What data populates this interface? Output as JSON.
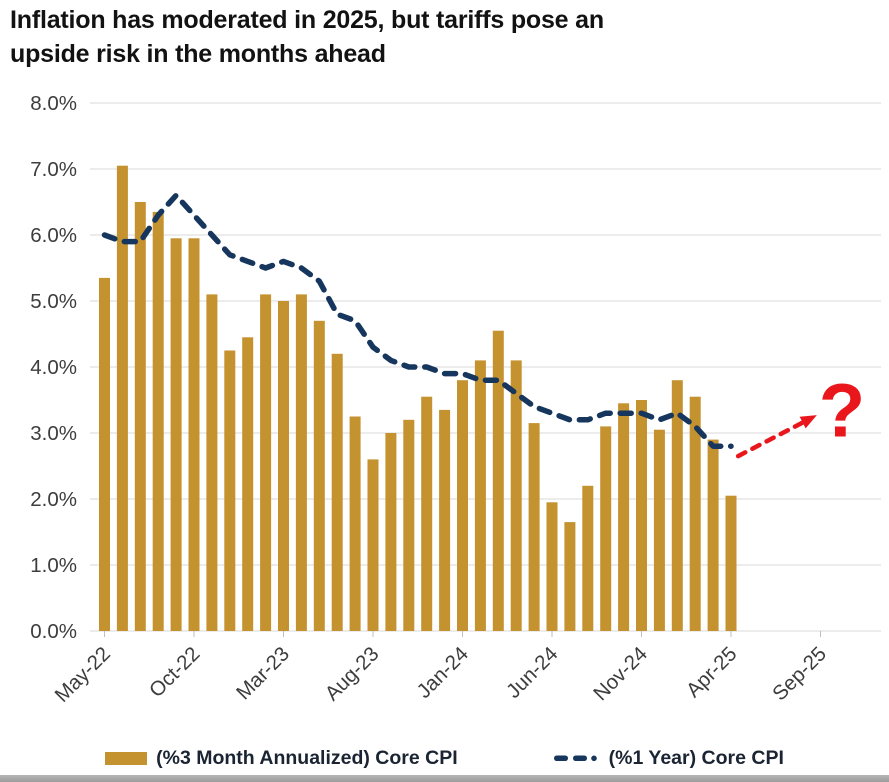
{
  "title": {
    "line1": "Inflation has moderated in 2025, but tariffs pose an",
    "line2": "upside risk in the months ahead"
  },
  "colors": {
    "bar_gold": "#C4922F",
    "line_navy": "#16365D",
    "annotation_red": "#E9161C",
    "gridline": "#D9D9D9",
    "tick": "#BFBFBF",
    "axis_text": "#3D3D3D",
    "title_text": "#121212",
    "legend_text": "#1B2433",
    "footer_strip": "#A6A6A6"
  },
  "chart_data": {
    "type": "bar",
    "title": "Inflation has moderated in 2025, but tariffs pose an upside risk in the months ahead",
    "xlabel": "",
    "ylabel": "",
    "ylim": [
      0,
      8
    ],
    "grid": "horizontal",
    "legend_position": "bottom",
    "categories": [
      "May-22",
      "Jun-22",
      "Jul-22",
      "Aug-22",
      "Sep-22",
      "Oct-22",
      "Nov-22",
      "Dec-22",
      "Jan-23",
      "Feb-23",
      "Mar-23",
      "Apr-23",
      "May-23",
      "Jun-23",
      "Jul-23",
      "Aug-23",
      "Sep-23",
      "Oct-23",
      "Nov-23",
      "Dec-23",
      "Jan-24",
      "Feb-24",
      "Mar-24",
      "Apr-24",
      "May-24",
      "Jun-24",
      "Jul-24",
      "Aug-24",
      "Sep-24",
      "Oct-24",
      "Nov-24",
      "Dec-24",
      "Jan-25",
      "Feb-25",
      "Mar-25",
      "Apr-25"
    ],
    "series": [
      {
        "name": "(%3 Month Annualized) Core CPI",
        "kind": "bar",
        "color": "#C4922F",
        "values": [
          5.35,
          7.05,
          6.5,
          6.35,
          5.95,
          5.95,
          5.1,
          4.25,
          4.45,
          5.1,
          5.0,
          5.1,
          4.7,
          4.2,
          3.25,
          2.6,
          3.0,
          3.2,
          3.55,
          3.35,
          3.8,
          4.1,
          4.55,
          4.1,
          3.15,
          1.95,
          1.65,
          2.2,
          3.1,
          3.45,
          3.5,
          3.05,
          3.8,
          3.55,
          2.9,
          2.05
        ]
      },
      {
        "name": "(%1 Year) Core CPI",
        "kind": "dashed-line",
        "color": "#16365D",
        "values": [
          6.0,
          5.9,
          5.9,
          6.3,
          6.6,
          6.3,
          6.0,
          5.7,
          5.6,
          5.5,
          5.6,
          5.5,
          5.3,
          4.8,
          4.7,
          4.3,
          4.1,
          4.0,
          4.0,
          3.9,
          3.9,
          3.8,
          3.8,
          3.6,
          3.4,
          3.3,
          3.2,
          3.2,
          3.3,
          3.3,
          3.3,
          3.2,
          3.3,
          3.1,
          2.8,
          2.8
        ]
      }
    ],
    "y_tick_labels": [
      "0.0%",
      "1.0%",
      "2.0%",
      "3.0%",
      "4.0%",
      "5.0%",
      "6.0%",
      "7.0%",
      "8.0%"
    ],
    "x_tick_labels": [
      "May-22",
      "Oct-22",
      "Mar-23",
      "Aug-23",
      "Jan-24",
      "Jun-24",
      "Nov-24",
      "Apr-25",
      "Sep-25"
    ],
    "x_tick_month_index": [
      0,
      5,
      10,
      15,
      20,
      25,
      30,
      35,
      40
    ],
    "annotation": {
      "color": "#E9161C",
      "arrow": {
        "from_month": 35.4,
        "from_value": 2.65,
        "to_month": 39.3,
        "to_value": 3.2
      },
      "question_mark": {
        "month": 41.2,
        "value": 2.95,
        "text": "?"
      }
    }
  }
}
